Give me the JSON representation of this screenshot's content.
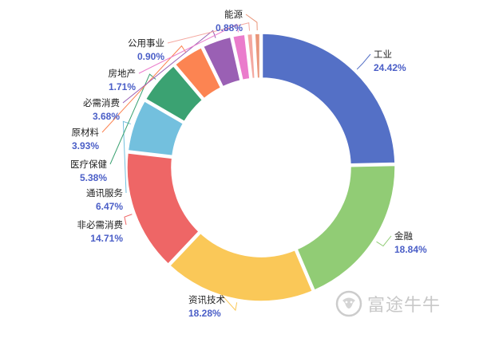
{
  "chart_data": {
    "type": "pie",
    "donut": true,
    "title": "",
    "legend": "none",
    "slices": [
      {
        "label": "工业",
        "value": 24.42,
        "display": "24.42%",
        "color": "#5470c6"
      },
      {
        "label": "金融",
        "value": 18.84,
        "display": "18.84%",
        "color": "#91cc75"
      },
      {
        "label": "资讯技术",
        "value": 18.28,
        "display": "18.28%",
        "color": "#fac858"
      },
      {
        "label": "非必需消费",
        "value": 14.71,
        "display": "14.71%",
        "color": "#ee6666"
      },
      {
        "label": "通讯服务",
        "value": 6.47,
        "display": "6.47%",
        "color": "#73c0de"
      },
      {
        "label": "医疗保健",
        "value": 5.38,
        "display": "5.38%",
        "color": "#3ba272"
      },
      {
        "label": "原材料",
        "value": 3.93,
        "display": "3.93%",
        "color": "#fc8452"
      },
      {
        "label": "必需消费",
        "value": 3.68,
        "display": "3.68%",
        "color": "#9a60b4"
      },
      {
        "label": "房地产",
        "value": 1.71,
        "display": "1.71%",
        "color": "#ea7ccc"
      },
      {
        "label": "公用事业",
        "value": 0.9,
        "display": "0.90%",
        "color": "#f4a8a0"
      },
      {
        "label": "能源",
        "value": 0.88,
        "display": "0.88%",
        "color": "#e9967a"
      }
    ]
  },
  "watermark": {
    "text": "富途牛牛"
  }
}
